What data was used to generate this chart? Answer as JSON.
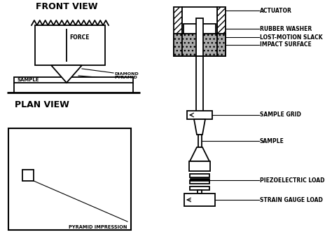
{
  "bg_color": "#ffffff",
  "title_front": "FRONT VIEW",
  "title_plan": "PLAN VIEW",
  "labels": {
    "actuator": "ACTUATOR",
    "rubber_washer": "RUBBER WASHER",
    "lost_motion": "LOST-MOTION SLACK",
    "impact_surface": "IMPACT SURFACE",
    "sample_grid": "SAMPLE GRID",
    "sample": "SAMPLE",
    "piezoelectric": "PIEZOELECTRIC LOAD",
    "strain_gauge": "STRAIN GAUGE LOAD",
    "diamond_pyramid": "DIAMOND\nPYRAMID",
    "sample_label": "SAMPLE",
    "force_label": "FORCE",
    "pyramid_impression": "PYRAMID IMPRESSION"
  },
  "figsize": [
    4.74,
    3.48
  ],
  "dpi": 100
}
